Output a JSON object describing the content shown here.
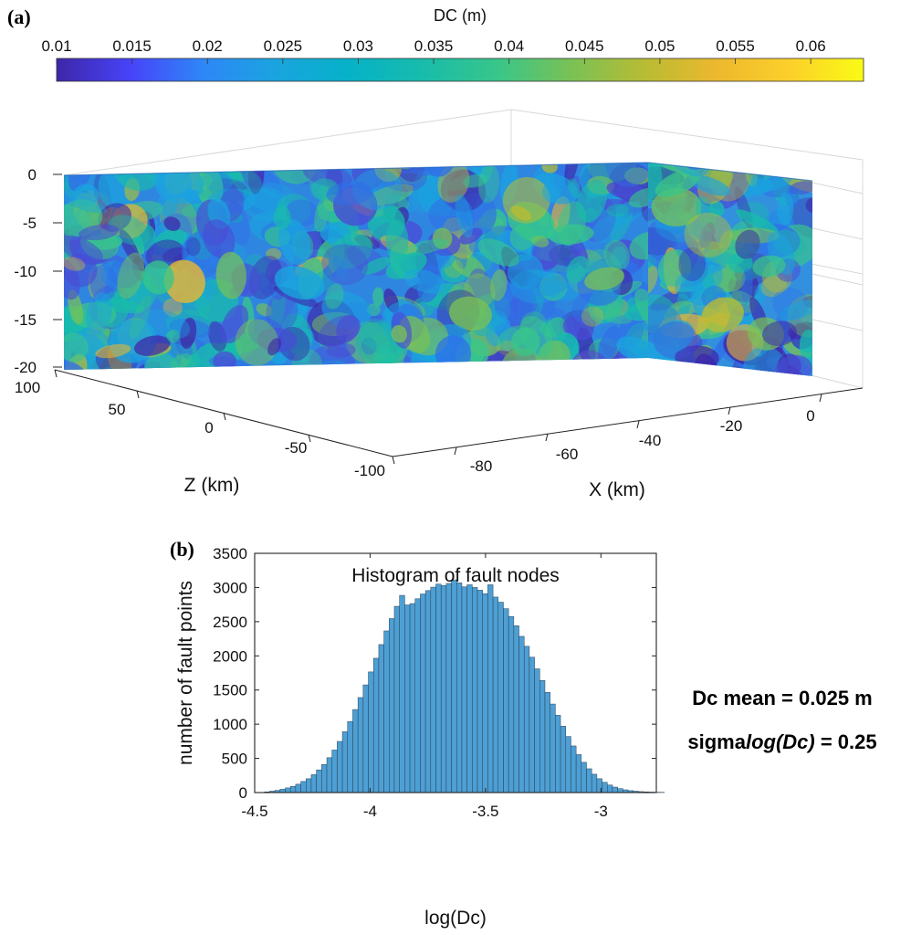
{
  "panel_a": {
    "label": "(a)",
    "colorbar": {
      "title": "DC (m)",
      "ticks": [
        "0.01",
        "0.015",
        "0.02",
        "0.025",
        "0.03",
        "0.035",
        "0.04",
        "0.045",
        "0.05",
        "0.055",
        "0.06"
      ],
      "range": [
        0.01,
        0.0635
      ],
      "colormap": [
        "#3e26a8",
        "#4743f8",
        "#2e87f7",
        "#1aa4df",
        "#06b2c8",
        "#18bcab",
        "#38c68a",
        "#79c156",
        "#b7bc34",
        "#edb82e",
        "#fcd02a",
        "#f9fb15"
      ]
    },
    "y_axis": {
      "ticks": [
        "0",
        "-5",
        "-10",
        "-15",
        "-20"
      ],
      "range": [
        -20,
        0
      ]
    },
    "z_axis": {
      "label": "Z (km)",
      "ticks": [
        "100",
        "50",
        "0",
        "-50",
        "-100"
      ],
      "range": [
        -100,
        100
      ]
    },
    "x_axis": {
      "label": "X (km)",
      "ticks": [
        "-80",
        "-60",
        "-40",
        "-20",
        "0"
      ],
      "range": [
        -80,
        0
      ]
    }
  },
  "panel_b": {
    "label": "(b)",
    "stats": {
      "mean_line": "Dc mean = 0.025 m",
      "sigma_prefix": "sigma",
      "sigma_italic": "log(Dc)",
      "sigma_suffix": " = 0.25"
    }
  },
  "chart_data": [
    {
      "type": "heatmap",
      "title": "DC (m)",
      "description_of_axes": "3D fault surface colored by Dc",
      "zlabel": "Z (km)",
      "xlabel": "X (km)",
      "depth_ticks": [
        0,
        -5,
        -10,
        -15,
        -20
      ],
      "z_ticks": [
        100,
        50,
        0,
        -50,
        -100
      ],
      "x_ticks": [
        -80,
        -60,
        -40,
        -20,
        0
      ],
      "color_range": [
        0.01,
        0.0635
      ]
    },
    {
      "type": "bar",
      "title": "Histogram of fault nodes",
      "xlabel": "log(Dc)",
      "ylabel": "number of fault points",
      "xlim": [
        -4.5,
        -2.76
      ],
      "ylim": [
        0,
        3500
      ],
      "x_ticks": [
        -4.5,
        -4,
        -3.5,
        -3
      ],
      "y_ticks": [
        0,
        500,
        1000,
        1500,
        2000,
        2500,
        3000,
        3500
      ],
      "bin_width": 0.0225,
      "bin_start": -4.48,
      "values": [
        3,
        10,
        20,
        32,
        48,
        68,
        90,
        122,
        162,
        202,
        262,
        332,
        410,
        510,
        622,
        748,
        890,
        1040,
        1215,
        1390,
        1575,
        1765,
        1965,
        2165,
        2365,
        2545,
        2725,
        2885,
        2745,
        2765,
        2835,
        2905,
        2955,
        3005,
        3050,
        3030,
        3060,
        3112,
        3068,
        3010,
        3040,
        3000,
        2960,
        2910,
        3040,
        2860,
        2785,
        2690,
        2575,
        2440,
        2285,
        2140,
        1980,
        1810,
        1640,
        1465,
        1295,
        1130,
        970,
        820,
        682,
        555,
        442,
        348,
        268,
        202,
        150,
        110,
        80,
        57,
        40,
        28,
        20,
        14,
        10,
        7,
        5,
        4
      ]
    }
  ]
}
